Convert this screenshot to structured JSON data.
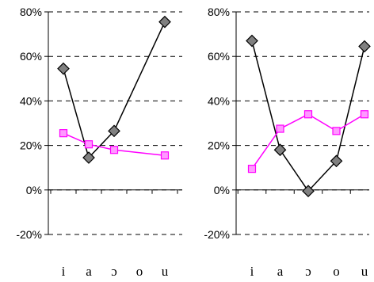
{
  "chart_data": [
    {
      "type": "line",
      "categories": [
        "i",
        "a",
        "ɔ",
        "o",
        "u"
      ],
      "ylim": [
        -0.2,
        0.8
      ],
      "yticks": [
        "-20%",
        "0%",
        "20%",
        "40%",
        "60%",
        "80%"
      ],
      "grid": "horizontal-dashed",
      "series": [
        {
          "marker": "diamond",
          "color": "#000000",
          "marker_fill": "#808080",
          "values": [
            0.545,
            0.145,
            0.265,
            null,
            0.755
          ]
        },
        {
          "marker": "square",
          "color": "#ff00ff",
          "marker_fill": "#ff99ff",
          "values": [
            0.255,
            0.205,
            0.18,
            null,
            0.155
          ]
        }
      ]
    },
    {
      "type": "line",
      "categories": [
        "i",
        "a",
        "ɔ",
        "o",
        "u"
      ],
      "ylim": [
        -0.2,
        0.8
      ],
      "yticks": [
        "-20%",
        "0%",
        "20%",
        "40%",
        "60%",
        "80%"
      ],
      "grid": "horizontal-dashed",
      "series": [
        {
          "marker": "diamond",
          "color": "#000000",
          "marker_fill": "#808080",
          "values": [
            0.67,
            0.18,
            -0.005,
            0.13,
            0.645
          ]
        },
        {
          "marker": "square",
          "color": "#ff00ff",
          "marker_fill": "#ff99ff",
          "values": [
            0.095,
            0.275,
            0.34,
            0.265,
            0.34
          ]
        }
      ]
    }
  ]
}
